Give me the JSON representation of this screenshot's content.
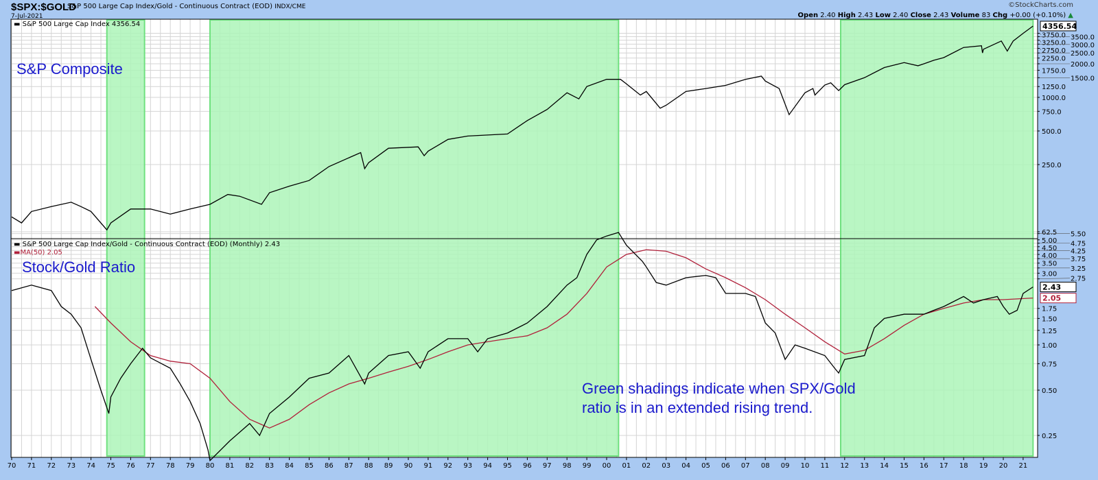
{
  "header": {
    "symbol": "$SPX:$GOLD",
    "description": "S&P 500 Large Cap Index/Gold - Continuous Contract (EOD)",
    "exchange": "INDX/CME",
    "date": "7-Jul-2021",
    "brand": "©StockCharts.com",
    "open_label": "Open",
    "open": "2.40",
    "high_label": "High",
    "high": "2.43",
    "low_label": "Low",
    "low": "2.40",
    "close_label": "Close",
    "close": "2.43",
    "volume_label": "Volume",
    "volume": "83",
    "chg_label": "Chg",
    "chg": "+0.00 (+0.10%)"
  },
  "annotations": {
    "top": "S&P Composite",
    "bottom": "Stock/Gold Ratio",
    "note_line1": "Green shadings indicate when SPX/Gold",
    "note_line2": "ratio is in an extended rising trend."
  },
  "colors": {
    "background": "#a9c9f2",
    "shade": "#adf5b8",
    "shade_edge": "#6fe07f",
    "price": "#000000",
    "ma": "#b0203a",
    "annotation": "#1a1acc"
  },
  "chart_data": [
    {
      "type": "line",
      "legend": "S&P 500 Large Cap Index 4356.54",
      "scale": "log",
      "last_label": "4356.54",
      "yticks": [
        62.5,
        250,
        500,
        750,
        1000,
        1250,
        1500,
        1750,
        2000,
        2250,
        2500,
        2750,
        3000,
        3250,
        3500,
        3750
      ],
      "ytick_labels": [
        "62.5",
        "250.0",
        "500.0",
        "750.0",
        "1000.0",
        "1250.0",
        "1500.0",
        "1750.0",
        "2000.0",
        "2250.0",
        "2500.0",
        "2750.0",
        "3000.0",
        "3250.0",
        "3500.0",
        "3750.0"
      ],
      "series": [
        {
          "x": [
            1970,
            1970.5,
            1971,
            1972,
            1973,
            1973.5,
            1974,
            1974.8,
            1975,
            1976,
            1977,
            1978,
            1979,
            1980,
            1980.9,
            1981.5,
            1982.6,
            1983,
            1984,
            1985,
            1986,
            1987.6,
            1987.8,
            1988,
            1989,
            1990.5,
            1990.8,
            1991,
            1992,
            1993,
            1994,
            1995,
            1996,
            1997,
            1998,
            1998.6,
            1999,
            2000,
            2000.7,
            2001,
            2001.7,
            2002,
            2002.7,
            2003,
            2004,
            2005,
            2006,
            2007,
            2007.8,
            2008,
            2008.7,
            2009.2,
            2010,
            2010.4,
            2010.5,
            2011,
            2011.3,
            2011.7,
            2012,
            2013,
            2014,
            2015,
            2015.7,
            2016,
            2016.5,
            2017,
            2018,
            2018.9,
            2018.95,
            2019,
            2019.9,
            2020.2,
            2020.5,
            2021,
            2021.5
          ],
          "y": [
            85,
            75,
            95,
            105,
            115,
            105,
            95,
            65,
            75,
            100,
            100,
            90,
            100,
            110,
            135,
            130,
            110,
            140,
            160,
            180,
            240,
            320,
            230,
            260,
            350,
            360,
            300,
            330,
            420,
            450,
            460,
            470,
            620,
            780,
            1100,
            970,
            1250,
            1450,
            1450,
            1320,
            1050,
            1130,
            800,
            850,
            1130,
            1200,
            1280,
            1450,
            1550,
            1400,
            1200,
            700,
            1100,
            1200,
            1050,
            1290,
            1350,
            1150,
            1300,
            1500,
            1850,
            2050,
            1920,
            2000,
            2150,
            2270,
            2800,
            2900,
            2500,
            2700,
            3200,
            2600,
            3200,
            3750,
            4356.54
          ]
        }
      ]
    },
    {
      "type": "line",
      "legend": "S&P 500 Large Cap Index/Gold - Continuous Contract (EOD) (Monthly) 2.43",
      "scale": "log",
      "yticks": [
        0.25,
        0.5,
        0.75,
        1.0,
        1.25,
        1.5,
        1.75,
        2.75,
        3.0,
        3.25,
        3.5,
        3.75,
        4.0,
        4.25,
        4.5,
        4.75,
        5.0,
        5.5
      ],
      "ytick_labels": [
        "0.25",
        "0.50",
        "0.75",
        "1.00",
        "1.25",
        "1.50",
        "1.75",
        "2.75",
        "3.00",
        "3.25",
        "3.50",
        "3.75",
        "4.00",
        "4.25",
        "4.50",
        "4.75",
        "5.00",
        "5.50"
      ],
      "last_label": "2.43",
      "ma_label": "2.05",
      "series": [
        {
          "name": "S&P 500 Large Cap Index/Gold",
          "x": [
            1970,
            1971,
            1972,
            1972.5,
            1973,
            1973.5,
            1974,
            1974.5,
            1974.9,
            1975,
            1975.5,
            1976,
            1976.6,
            1977,
            1978,
            1978.5,
            1979,
            1979.5,
            1979.9,
            1980,
            1981,
            1982,
            1982.5,
            1983,
            1984,
            1985,
            1986,
            1987,
            1987.8,
            1988,
            1989,
            1990,
            1990.6,
            1991,
            1992,
            1993,
            1993.5,
            1994,
            1995,
            1996,
            1997,
            1998,
            1998.5,
            1999,
            1999.5,
            2000,
            2000.6,
            2001,
            2001.8,
            2002,
            2002.5,
            2003,
            2004,
            2005,
            2005.5,
            2006,
            2007,
            2007.5,
            2008,
            2008.5,
            2009,
            2009.5,
            2010,
            2011,
            2011.5,
            2011.7,
            2012,
            2013,
            2013.5,
            2014,
            2015,
            2016,
            2016.5,
            2017,
            2018,
            2018.5,
            2019,
            2019.7,
            2020,
            2020.3,
            2020.7,
            2021,
            2021.5
          ],
          "y": [
            2.3,
            2.5,
            2.3,
            1.8,
            1.6,
            1.3,
            0.8,
            0.5,
            0.35,
            0.45,
            0.6,
            0.75,
            0.95,
            0.82,
            0.7,
            0.55,
            0.42,
            0.3,
            0.2,
            0.17,
            0.23,
            0.3,
            0.25,
            0.35,
            0.45,
            0.6,
            0.65,
            0.85,
            0.55,
            0.65,
            0.85,
            0.9,
            0.7,
            0.9,
            1.1,
            1.1,
            0.9,
            1.1,
            1.2,
            1.4,
            1.8,
            2.5,
            2.8,
            4.0,
            5.0,
            5.3,
            5.6,
            4.6,
            3.6,
            3.3,
            2.6,
            2.5,
            2.8,
            2.9,
            2.8,
            2.2,
            2.2,
            2.1,
            1.4,
            1.2,
            0.8,
            1.0,
            0.95,
            0.85,
            0.7,
            0.65,
            0.8,
            0.85,
            1.3,
            1.5,
            1.6,
            1.6,
            1.7,
            1.8,
            2.1,
            1.9,
            2.0,
            2.1,
            1.8,
            1.6,
            1.7,
            2.2,
            2.43
          ]
        },
        {
          "name": "MA(50) 2.05",
          "x": [
            1974.2,
            1975,
            1976,
            1977,
            1978,
            1979,
            1980,
            1981,
            1982,
            1983,
            1984,
            1985,
            1986,
            1987,
            1988,
            1989,
            1990,
            1991,
            1992,
            1993,
            1994,
            1995,
            1996,
            1997,
            1998,
            1999,
            2000,
            2001,
            2002,
            2003,
            2004,
            2005,
            2006,
            2007,
            2008,
            2009,
            2010,
            2011,
            2012,
            2013,
            2014,
            2015,
            2016,
            2017,
            2018,
            2019,
            2020,
            2021.5
          ],
          "y": [
            1.8,
            1.4,
            1.05,
            0.85,
            0.78,
            0.75,
            0.6,
            0.42,
            0.32,
            0.28,
            0.32,
            0.4,
            0.48,
            0.55,
            0.6,
            0.66,
            0.72,
            0.8,
            0.9,
            1.0,
            1.05,
            1.1,
            1.15,
            1.3,
            1.6,
            2.2,
            3.3,
            4.0,
            4.3,
            4.2,
            3.8,
            3.2,
            2.8,
            2.4,
            2.0,
            1.6,
            1.3,
            1.05,
            0.87,
            0.92,
            1.1,
            1.35,
            1.6,
            1.75,
            1.9,
            2.0,
            2.0,
            2.05
          ]
        }
      ]
    }
  ],
  "shaded_periods": [
    [
      1974.8,
      1976.7
    ],
    [
      1980.0,
      2000.6
    ],
    [
      2011.8,
      2021.5
    ]
  ],
  "xtick_labels": [
    "70",
    "71",
    "72",
    "73",
    "74",
    "75",
    "76",
    "77",
    "78",
    "79",
    "80",
    "81",
    "82",
    "83",
    "84",
    "85",
    "86",
    "87",
    "88",
    "89",
    "90",
    "91",
    "92",
    "93",
    "94",
    "95",
    "96",
    "97",
    "98",
    "99",
    "00",
    "01",
    "02",
    "03",
    "04",
    "05",
    "06",
    "07",
    "08",
    "09",
    "10",
    "11",
    "12",
    "13",
    "14",
    "15",
    "16",
    "17",
    "18",
    "19",
    "20",
    "21"
  ]
}
